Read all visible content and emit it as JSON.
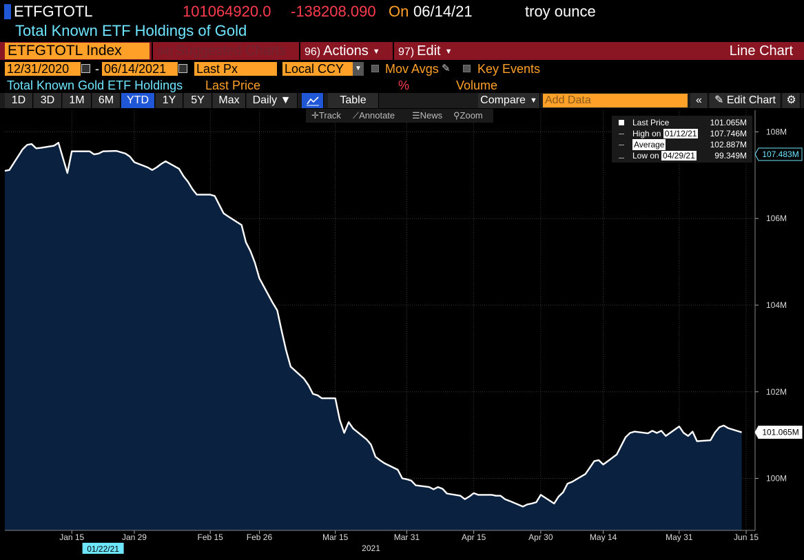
{
  "header": {
    "ticker": "ETFGTOTL",
    "last_value": "101064920.0",
    "change": "-138208.090",
    "on_label": "On",
    "date": "06/14/21",
    "unit": "troy ounce",
    "description": "Total Known ETF Holdings of Gold"
  },
  "function_bar": {
    "security": "ETFGTOTL Index",
    "suggested_num": "94)",
    "suggested_label": "Suggested Charts",
    "actions_num": "96)",
    "actions_label": "Actions",
    "edit_num": "97)",
    "edit_label": "Edit",
    "chart_type": "Line Chart"
  },
  "settings": {
    "start_date": "12/31/2020",
    "date_separator": "-",
    "end_date": "06/14/2021",
    "field": "Last Px",
    "currency": "Local CCY",
    "mov_avgs": "Mov Avgs",
    "key_events": "Key Events"
  },
  "legend_bar": {
    "series": "Total Known Gold ETF Holdings",
    "last_price": "Last Price",
    "percent": "%",
    "volume": "Volume"
  },
  "toolbar": {
    "periods": [
      "1D",
      "3D",
      "1M",
      "6M",
      "YTD",
      "1Y",
      "5Y",
      "Max"
    ],
    "selected_period": "YTD",
    "frequency": "Daily ▼",
    "table": "Table",
    "compare": "Compare",
    "add_data_placeholder": "Add Data",
    "edit_chart": "Edit Chart",
    "track": "Track",
    "annotate": "Annotate",
    "news": "News",
    "zoom": "Zoom"
  },
  "legend_box": {
    "last_price_label": "Last Price",
    "last_price_value": "101.065M",
    "high_label": "High on",
    "high_date": "01/12/21",
    "high_value": "107.746M",
    "average_label": "Average",
    "average_value": "102.887M",
    "low_label": "Low on",
    "low_date": "04/29/21",
    "low_value": "99.349M"
  },
  "colors": {
    "line": "#ffffff",
    "area_fill": "#0a2240",
    "orange": "#ffa028",
    "red": "#ff3c4e",
    "cyan": "#6fe6ff",
    "blue": "#1f57d6",
    "bar_red": "#8a1624"
  },
  "chart_data": {
    "type": "area",
    "title": "",
    "xlabel": "2021",
    "ylabel": "",
    "ylim": [
      98.8,
      108.5
    ],
    "y_ticks": [
      100,
      102,
      104,
      106,
      108
    ],
    "y_tick_labels": [
      "100M",
      "102M",
      "104M",
      "106M",
      "108M"
    ],
    "x_ticks": [
      "2021-01-15",
      "2021-01-29",
      "2021-02-15",
      "2021-02-26",
      "2021-03-15",
      "2021-03-31",
      "2021-04-15",
      "2021-04-30",
      "2021-05-14",
      "2021-05-31",
      "2021-06-15"
    ],
    "x_tick_labels": [
      "Jan 15",
      "Jan 29",
      "Feb 15",
      "Feb 26",
      "Mar 15",
      "Mar 31",
      "Apr 15",
      "Apr 30",
      "May 14",
      "May 31",
      "Jun 15"
    ],
    "x_range": [
      "2020-12-31",
      "2021-06-17"
    ],
    "cursor_date_label": "01/22/21",
    "right_labels": [
      {
        "value": 107.483,
        "text": "107.483M"
      },
      {
        "value": 101.065,
        "text": "101.065M"
      }
    ],
    "series": [
      {
        "x": [
          "2020-12-31",
          "2021-01-01",
          "2021-01-04",
          "2021-01-05",
          "2021-01-06",
          "2021-01-07",
          "2021-01-08",
          "2021-01-11",
          "2021-01-12",
          "2021-01-13",
          "2021-01-14",
          "2021-01-15",
          "2021-01-18",
          "2021-01-19",
          "2021-01-20",
          "2021-01-21",
          "2021-01-22",
          "2021-01-25",
          "2021-01-26",
          "2021-01-27",
          "2021-01-28",
          "2021-01-29",
          "2021-02-01",
          "2021-02-02",
          "2021-02-03",
          "2021-02-04",
          "2021-02-05",
          "2021-02-08",
          "2021-02-09",
          "2021-02-10",
          "2021-02-11",
          "2021-02-12",
          "2021-02-15",
          "2021-02-16",
          "2021-02-17",
          "2021-02-18",
          "2021-02-19",
          "2021-02-22",
          "2021-02-23",
          "2021-02-24",
          "2021-02-25",
          "2021-02-26",
          "2021-03-01",
          "2021-03-02",
          "2021-03-03",
          "2021-03-04",
          "2021-03-05",
          "2021-03-08",
          "2021-03-09",
          "2021-03-10",
          "2021-03-11",
          "2021-03-12",
          "2021-03-15",
          "2021-03-16",
          "2021-03-17",
          "2021-03-18",
          "2021-03-19",
          "2021-03-22",
          "2021-03-23",
          "2021-03-24",
          "2021-03-25",
          "2021-03-26",
          "2021-03-29",
          "2021-03-30",
          "2021-03-31",
          "2021-04-01",
          "2021-04-02",
          "2021-04-05",
          "2021-04-06",
          "2021-04-07",
          "2021-04-08",
          "2021-04-09",
          "2021-04-12",
          "2021-04-13",
          "2021-04-14",
          "2021-04-15",
          "2021-04-16",
          "2021-04-19",
          "2021-04-20",
          "2021-04-21",
          "2021-04-22",
          "2021-04-23",
          "2021-04-26",
          "2021-04-27",
          "2021-04-28",
          "2021-04-29",
          "2021-04-30",
          "2021-05-03",
          "2021-05-04",
          "2021-05-05",
          "2021-05-06",
          "2021-05-07",
          "2021-05-10",
          "2021-05-11",
          "2021-05-12",
          "2021-05-13",
          "2021-05-14",
          "2021-05-17",
          "2021-05-18",
          "2021-05-19",
          "2021-05-20",
          "2021-05-21",
          "2021-05-24",
          "2021-05-25",
          "2021-05-26",
          "2021-05-27",
          "2021-05-28",
          "2021-05-31",
          "2021-06-01",
          "2021-06-02",
          "2021-06-03",
          "2021-06-04",
          "2021-06-07",
          "2021-06-08",
          "2021-06-09",
          "2021-06-10",
          "2021-06-11",
          "2021-06-14"
        ],
        "values": [
          107.1,
          107.12,
          107.6,
          107.7,
          107.72,
          107.62,
          107.63,
          107.68,
          107.75,
          107.4,
          107.05,
          107.55,
          107.55,
          107.55,
          107.48,
          107.5,
          107.55,
          107.56,
          107.53,
          107.5,
          107.43,
          107.3,
          107.18,
          107.12,
          107.18,
          107.26,
          107.32,
          107.15,
          106.98,
          106.85,
          106.68,
          106.55,
          106.55,
          106.52,
          106.32,
          106.12,
          106.05,
          105.85,
          105.45,
          105.25,
          104.98,
          104.62,
          104.05,
          103.88,
          103.4,
          102.95,
          102.58,
          102.3,
          102.15,
          101.95,
          101.92,
          101.85,
          101.85,
          101.35,
          101.05,
          101.3,
          101.15,
          100.9,
          100.78,
          100.5,
          100.42,
          100.35,
          100.2,
          100.0,
          99.98,
          99.95,
          99.84,
          99.8,
          99.75,
          99.8,
          99.76,
          99.65,
          99.6,
          99.52,
          99.58,
          99.66,
          99.62,
          99.62,
          99.6,
          99.6,
          99.52,
          99.48,
          99.35,
          99.4,
          99.42,
          99.45,
          99.62,
          99.42,
          99.58,
          99.68,
          99.88,
          99.92,
          100.1,
          100.25,
          100.4,
          100.42,
          100.32,
          100.55,
          100.75,
          100.95,
          101.05,
          101.08,
          101.04,
          101.1,
          101.05,
          101.1,
          100.98,
          101.2,
          101.05,
          100.98,
          101.08,
          100.86,
          100.88,
          101.06,
          101.18,
          101.22,
          101.16,
          101.065
        ]
      }
    ]
  }
}
